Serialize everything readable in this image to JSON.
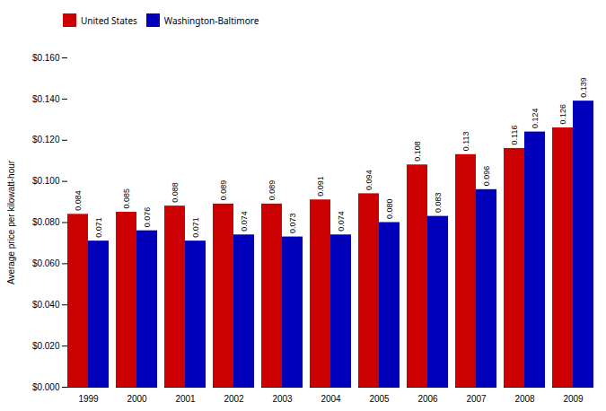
{
  "chart_data": {
    "type": "bar",
    "ylabel": "Average price per kilowatt-hour",
    "categories": [
      "1999",
      "2000",
      "2001",
      "2002",
      "2003",
      "2004",
      "2005",
      "2006",
      "2007",
      "2008",
      "2009"
    ],
    "series": [
      {
        "name": "United States",
        "color": "#CC0000",
        "values": [
          0.084,
          0.085,
          0.088,
          0.089,
          0.089,
          0.091,
          0.094,
          0.108,
          0.113,
          0.116,
          0.126
        ],
        "value_labels": [
          "0.084",
          "0.085",
          "0.088",
          "0.089",
          "0.089",
          "0.091",
          "0.094",
          "0.108",
          "0.113",
          "0.116",
          "0.126"
        ]
      },
      {
        "name": "Washington-Baltimore",
        "color": "#0000BB",
        "values": [
          0.071,
          0.076,
          0.071,
          0.074,
          0.073,
          0.074,
          0.08,
          0.083,
          0.096,
          0.124,
          0.139
        ],
        "value_labels": [
          "0.071",
          "0.076",
          "0.071",
          "0.074",
          "0.073",
          "0.074",
          "0.080",
          "0.083",
          "0.096",
          "0.124",
          "0.139"
        ]
      }
    ],
    "ylim": [
      0,
      0.16
    ],
    "yticks": [
      {
        "value": 0,
        "label": "$0.000"
      },
      {
        "value": 0.02,
        "label": "$0.020"
      },
      {
        "value": 0.04,
        "label": "$0.040"
      },
      {
        "value": 0.06,
        "label": "$0.060"
      },
      {
        "value": 0.08,
        "label": "$0.080"
      },
      {
        "value": 0.1,
        "label": "$0.100"
      },
      {
        "value": 0.12,
        "label": "$0.120"
      },
      {
        "value": 0.14,
        "label": "$0.140"
      },
      {
        "value": 0.16,
        "label": "$0.160"
      }
    ],
    "data_labels": true,
    "legend": "upper left",
    "grid": false
  }
}
